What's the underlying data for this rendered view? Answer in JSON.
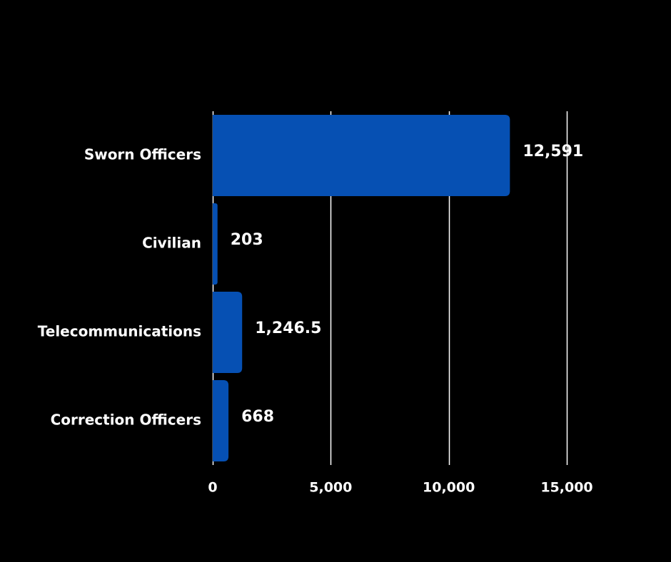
{
  "chart_data": {
    "type": "bar",
    "orientation": "horizontal",
    "categories": [
      "Sworn Officers",
      "Civilian",
      "Telecommunications",
      "Correction Officers"
    ],
    "values": [
      12591,
      203,
      1246.5,
      668
    ],
    "value_labels": [
      "12,591",
      "203",
      "1,246.5",
      "668"
    ],
    "xticks": [
      0,
      5000,
      10000,
      15000
    ],
    "xtick_labels": [
      "0",
      "5,000",
      "10,000",
      "15,000"
    ],
    "xlim": [
      0,
      15000
    ],
    "grid": true,
    "title": "",
    "xlabel": "",
    "ylabel": ""
  },
  "colors": {
    "background": "#000000",
    "bar": "#0650b3",
    "grid": "#ffffff",
    "text": "#ffffff"
  }
}
